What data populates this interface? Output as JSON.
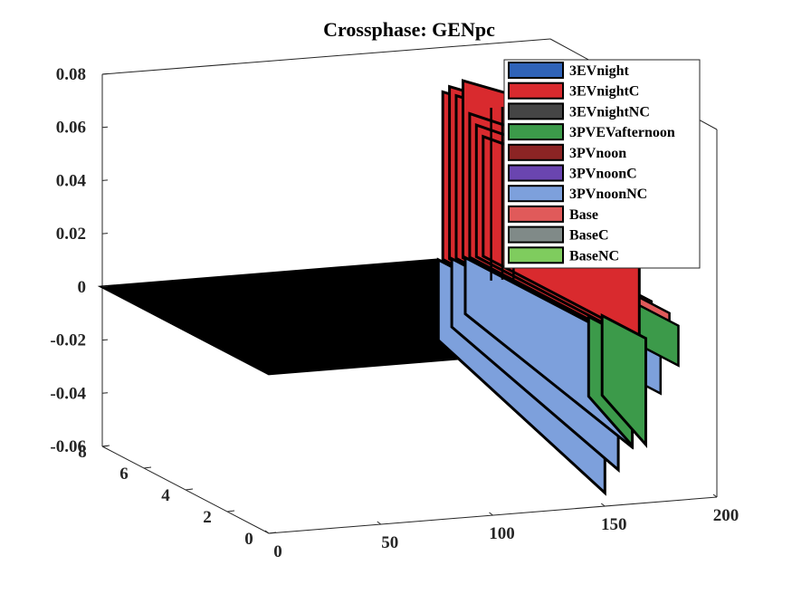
{
  "chart_data": {
    "type": "area",
    "title": "Crossphase: GENpc",
    "xlabel": "",
    "ylabel": "",
    "zlabel": "",
    "x_axis": {
      "range": [
        0,
        200
      ],
      "ticks": [
        "0",
        "50",
        "100",
        "150",
        "200"
      ]
    },
    "y_axis": {
      "range": [
        0,
        8
      ],
      "ticks": [
        "0",
        "2",
        "4",
        "6",
        "8"
      ]
    },
    "z_axis": {
      "range": [
        -0.06,
        0.08
      ],
      "ticks": [
        "-0.06",
        "-0.04",
        "-0.02",
        "0",
        "0.02",
        "0.04",
        "0.06",
        "0.08"
      ]
    },
    "legend_position": "top-right",
    "series": [
      {
        "name": "3EVnight",
        "color": "#2f63b8"
      },
      {
        "name": "3EVnightC",
        "color": "#d92a2e"
      },
      {
        "name": "3EVnightNC",
        "color": "#454545"
      },
      {
        "name": "3PVEVafternoon",
        "color": "#3c9a4a"
      },
      {
        "name": "3PVnoon",
        "color": "#8c2424"
      },
      {
        "name": "3PVnoonC",
        "color": "#6a45b0"
      },
      {
        "name": "3PVnoonNC",
        "color": "#7da0dc"
      },
      {
        "name": "Base",
        "color": "#e05a5a"
      },
      {
        "name": "BaseC",
        "color": "#808a88"
      },
      {
        "name": "BaseNC",
        "color": "#7fcc5e"
      }
    ],
    "baseline_value": 0,
    "baseline_x_range": [
      0,
      150
    ],
    "approx_peak_positive": 0.07,
    "approx_peak_negative": -0.055
  }
}
